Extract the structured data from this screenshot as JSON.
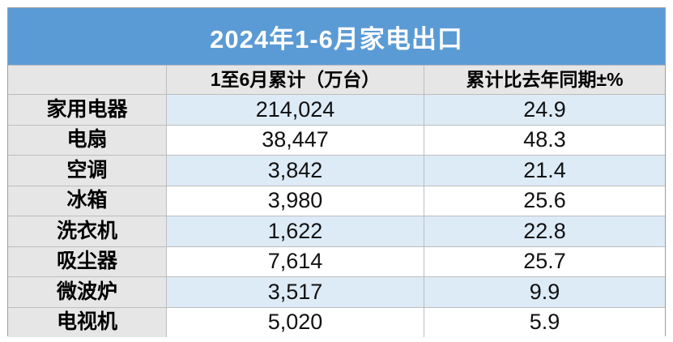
{
  "title": "2024年1-6月家电出口",
  "colors": {
    "title_bar": "#5b9bd5",
    "title_text": "#ffffff",
    "header_bg": "#e7e6e6",
    "label_column_bg": "#e7e6e6",
    "row_alt_bg": "#ddebf7",
    "row_bg": "#ffffff",
    "grid_line": "#bdbdbd",
    "text": "#000000"
  },
  "table": {
    "columns": [
      "",
      "1至6月累计（万台）",
      "累计比去年同期±%"
    ],
    "rows": [
      {
        "label": "家用电器",
        "cumulative": "214,024",
        "yoy": "24.9"
      },
      {
        "label": "电扇",
        "cumulative": "38,447",
        "yoy": "48.3"
      },
      {
        "label": "空调",
        "cumulative": "3,842",
        "yoy": "21.4"
      },
      {
        "label": "冰箱",
        "cumulative": "3,980",
        "yoy": "25.6"
      },
      {
        "label": "洗衣机",
        "cumulative": "1,622",
        "yoy": "22.8"
      },
      {
        "label": "吸尘器",
        "cumulative": "7,614",
        "yoy": "25.7"
      },
      {
        "label": "微波炉",
        "cumulative": "3,517",
        "yoy": "9.9"
      },
      {
        "label": "电视机",
        "cumulative": "5,020",
        "yoy": "5.9"
      }
    ]
  },
  "chart_data": {
    "type": "table",
    "title": "2024年1-6月家电出口",
    "columns": [
      "",
      "1至6月累计（万台）",
      "累计比去年同期±%"
    ],
    "categories": [
      "家用电器",
      "电扇",
      "空调",
      "冰箱",
      "洗衣机",
      "吸尘器",
      "微波炉",
      "电视机"
    ],
    "series": [
      {
        "name": "1至6月累计（万台）",
        "values": [
          214024,
          38447,
          3842,
          3980,
          1622,
          7614,
          3517,
          5020
        ]
      },
      {
        "name": "累计比去年同期±%",
        "values": [
          24.9,
          48.3,
          21.4,
          25.6,
          22.8,
          25.7,
          9.9,
          5.9
        ]
      }
    ]
  }
}
